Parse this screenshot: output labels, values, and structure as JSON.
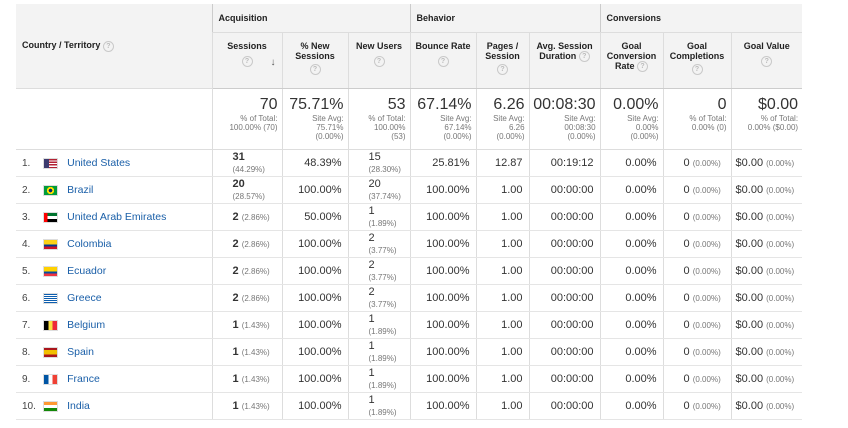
{
  "headers": {
    "country": "Country / Territory",
    "groups": {
      "acquisition": "Acquisition",
      "behavior": "Behavior",
      "conversions": "Conversions"
    },
    "columns": {
      "sessions": "Sessions",
      "pct_new_sessions_1": "% New",
      "pct_new_sessions_2": "Sessions",
      "new_users": "New Users",
      "bounce_rate": "Bounce Rate",
      "pages_session_1": "Pages /",
      "pages_session_2": "Session",
      "avg_duration_1": "Avg. Session",
      "avg_duration_2": "Duration",
      "goal_conv_1": "Goal",
      "goal_conv_2": "Conversion",
      "goal_conv_3": "Rate",
      "goal_comp_1": "Goal",
      "goal_comp_2": "Completions",
      "goal_value": "Goal Value"
    },
    "help_glyph": "?",
    "sort_glyph": "↓"
  },
  "totals": {
    "sessions": {
      "value": "70",
      "sub1": "% of Total:",
      "sub2": "100.00% (70)"
    },
    "pct_new": {
      "value": "75.71%",
      "sub1": "Site Avg:",
      "sub2": "75.71%",
      "sub3": "(0.00%)"
    },
    "new_users": {
      "value": "53",
      "sub1": "% of Total:",
      "sub2": "100.00%",
      "sub3": "(53)"
    },
    "bounce": {
      "value": "67.14%",
      "sub1": "Site Avg:",
      "sub2": "67.14%",
      "sub3": "(0.00%)"
    },
    "pages": {
      "value": "6.26",
      "sub1": "Site Avg:",
      "sub2": "6.26",
      "sub3": "(0.00%)"
    },
    "duration": {
      "value": "00:08:30",
      "sub1": "Site Avg:",
      "sub2": "00:08:30",
      "sub3": "(0.00%)"
    },
    "conv_rate": {
      "value": "0.00%",
      "sub1": "Site Avg:",
      "sub2": "0.00%",
      "sub3": "(0.00%)"
    },
    "completions": {
      "value": "0",
      "sub1": "% of Total:",
      "sub2": "0.00% (0)"
    },
    "goal_value": {
      "value": "$0.00",
      "sub1": "% of Total:",
      "sub2": "0.00% ($0.00)"
    }
  },
  "rows": [
    {
      "n": "1.",
      "country": "United States",
      "sessions": "31",
      "sessions_pct": "(44.29%)",
      "pct_new": "48.39%",
      "new_users": "15",
      "new_users_pct": "(28.30%)",
      "bounce": "25.81%",
      "pages": "12.87",
      "duration": "00:19:12",
      "conv": "0.00%",
      "comp": "0",
      "comp_pct": "(0.00%)",
      "value": "$0.00",
      "value_pct": "(0.00%)"
    },
    {
      "n": "2.",
      "country": "Brazil",
      "sessions": "20",
      "sessions_pct": "(28.57%)",
      "pct_new": "100.00%",
      "new_users": "20",
      "new_users_pct": "(37.74%)",
      "bounce": "100.00%",
      "pages": "1.00",
      "duration": "00:00:00",
      "conv": "0.00%",
      "comp": "0",
      "comp_pct": "(0.00%)",
      "value": "$0.00",
      "value_pct": "(0.00%)"
    },
    {
      "n": "3.",
      "country": "United Arab Emirates",
      "sessions": "2",
      "sessions_pct": "(2.86%)",
      "pct_new": "50.00%",
      "new_users": "1",
      "new_users_pct": "(1.89%)",
      "bounce": "100.00%",
      "pages": "1.00",
      "duration": "00:00:00",
      "conv": "0.00%",
      "comp": "0",
      "comp_pct": "(0.00%)",
      "value": "$0.00",
      "value_pct": "(0.00%)"
    },
    {
      "n": "4.",
      "country": "Colombia",
      "sessions": "2",
      "sessions_pct": "(2.86%)",
      "pct_new": "100.00%",
      "new_users": "2",
      "new_users_pct": "(3.77%)",
      "bounce": "100.00%",
      "pages": "1.00",
      "duration": "00:00:00",
      "conv": "0.00%",
      "comp": "0",
      "comp_pct": "(0.00%)",
      "value": "$0.00",
      "value_pct": "(0.00%)"
    },
    {
      "n": "5.",
      "country": "Ecuador",
      "sessions": "2",
      "sessions_pct": "(2.86%)",
      "pct_new": "100.00%",
      "new_users": "2",
      "new_users_pct": "(3.77%)",
      "bounce": "100.00%",
      "pages": "1.00",
      "duration": "00:00:00",
      "conv": "0.00%",
      "comp": "0",
      "comp_pct": "(0.00%)",
      "value": "$0.00",
      "value_pct": "(0.00%)"
    },
    {
      "n": "6.",
      "country": "Greece",
      "sessions": "2",
      "sessions_pct": "(2.86%)",
      "pct_new": "100.00%",
      "new_users": "2",
      "new_users_pct": "(3.77%)",
      "bounce": "100.00%",
      "pages": "1.00",
      "duration": "00:00:00",
      "conv": "0.00%",
      "comp": "0",
      "comp_pct": "(0.00%)",
      "value": "$0.00",
      "value_pct": "(0.00%)"
    },
    {
      "n": "7.",
      "country": "Belgium",
      "sessions": "1",
      "sessions_pct": "(1.43%)",
      "pct_new": "100.00%",
      "new_users": "1",
      "new_users_pct": "(1.89%)",
      "bounce": "100.00%",
      "pages": "1.00",
      "duration": "00:00:00",
      "conv": "0.00%",
      "comp": "0",
      "comp_pct": "(0.00%)",
      "value": "$0.00",
      "value_pct": "(0.00%)"
    },
    {
      "n": "8.",
      "country": "Spain",
      "sessions": "1",
      "sessions_pct": "(1.43%)",
      "pct_new": "100.00%",
      "new_users": "1",
      "new_users_pct": "(1.89%)",
      "bounce": "100.00%",
      "pages": "1.00",
      "duration": "00:00:00",
      "conv": "0.00%",
      "comp": "0",
      "comp_pct": "(0.00%)",
      "value": "$0.00",
      "value_pct": "(0.00%)"
    },
    {
      "n": "9.",
      "country": "France",
      "sessions": "1",
      "sessions_pct": "(1.43%)",
      "pct_new": "100.00%",
      "new_users": "1",
      "new_users_pct": "(1.89%)",
      "bounce": "100.00%",
      "pages": "1.00",
      "duration": "00:00:00",
      "conv": "0.00%",
      "comp": "0",
      "comp_pct": "(0.00%)",
      "value": "$0.00",
      "value_pct": "(0.00%)"
    },
    {
      "n": "10.",
      "country": "India",
      "sessions": "1",
      "sessions_pct": "(1.43%)",
      "pct_new": "100.00%",
      "new_users": "1",
      "new_users_pct": "(1.89%)",
      "bounce": "100.00%",
      "pages": "1.00",
      "duration": "00:00:00",
      "conv": "0.00%",
      "comp": "0",
      "comp_pct": "(0.00%)",
      "value": "$0.00",
      "value_pct": "(0.00%)"
    }
  ],
  "flags": {
    "us-flag-icon": [
      "#b22234",
      "#ffffff",
      "#3c3b6e"
    ],
    "brazil-flag-icon": [
      "#009c3b",
      "#ffdf00",
      "#002776"
    ],
    "uae-flag-icon": [
      "#00732f",
      "#ffffff",
      "#000000",
      "#ff0000"
    ],
    "colombia-flag-icon": [
      "#fcd116",
      "#003893",
      "#ce1126"
    ],
    "ecuador-flag-icon": [
      "#ffd100",
      "#034ea2",
      "#ef3340"
    ],
    "greece-flag-icon": [
      "#0d5eaf",
      "#ffffff"
    ],
    "belgium-flag-icon": [
      "#000000",
      "#fae042",
      "#ed2939"
    ],
    "spain-flag-icon": [
      "#aa151b",
      "#f1bf00"
    ],
    "france-flag-icon": [
      "#0055a4",
      "#ffffff",
      "#ef4135"
    ],
    "india-flag-icon": [
      "#ff9933",
      "#ffffff",
      "#138808"
    ]
  },
  "colors": {
    "link": "#1a5fa8",
    "header_bg": "#f3f3f3",
    "border": "#dddddd"
  }
}
